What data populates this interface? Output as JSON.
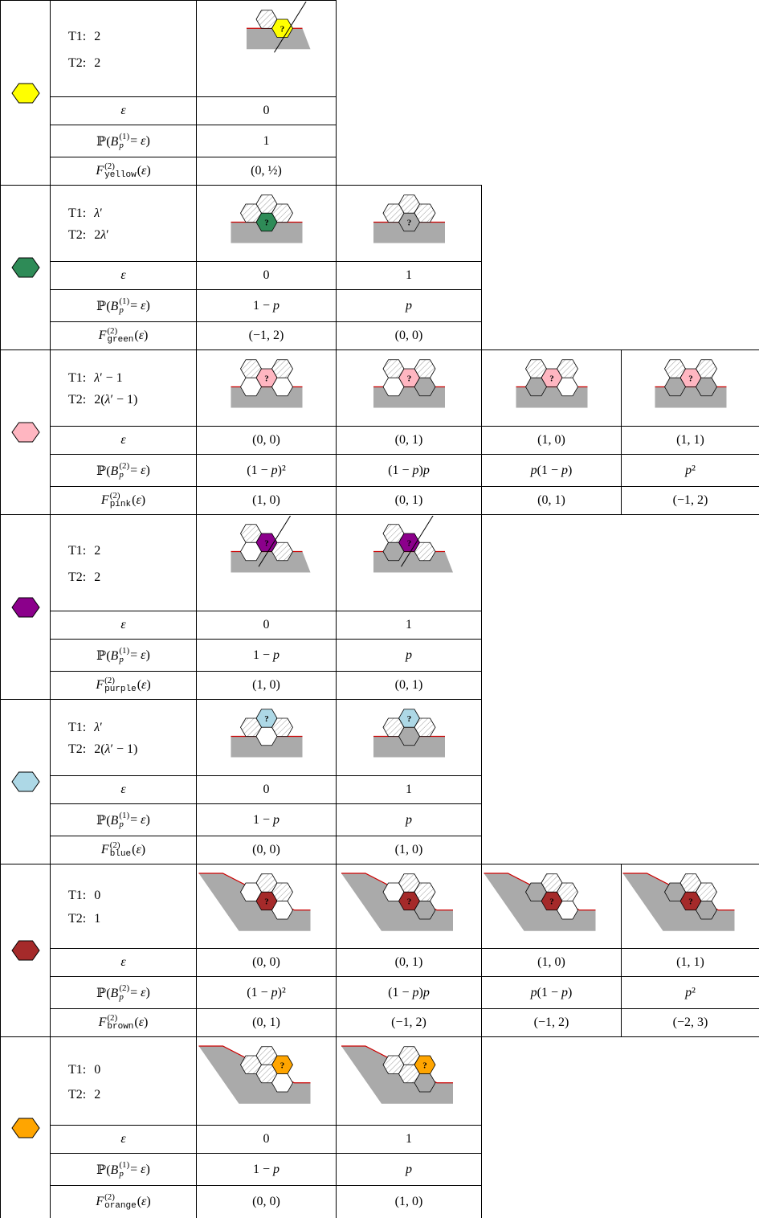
{
  "question_mark": "?",
  "blocks": [
    {
      "color": "#ffff00",
      "t1": {
        "label": "T1:",
        "value": "2"
      },
      "t2": {
        "label": "T2:",
        "value": "2"
      },
      "epsilon_label": "ε",
      "prob_label": {
        "main": "ℙ(B",
        "sub": "p",
        "sup": "(1)",
        "tail": " = ε)"
      },
      "f_label": {
        "main": "F",
        "sup": "(2)",
        "sub": "yellow",
        "tail": "(ε)"
      },
      "columns": [
        {
          "epsilon": "0",
          "prob": "1",
          "f": "(0, ½)"
        }
      ]
    },
    {
      "color": "#2e8b57",
      "t1": {
        "label": "T1:",
        "value": "λ′"
      },
      "t2": {
        "label": "T2:",
        "value": "2λ′"
      },
      "epsilon_label": "ε",
      "prob_label": {
        "main": "ℙ(B",
        "sub": "p",
        "sup": "(1)",
        "tail": " = ε)"
      },
      "f_label": {
        "main": "F",
        "sup": "(2)",
        "sub": "green",
        "tail": "(ε)"
      },
      "columns": [
        {
          "epsilon": "0",
          "prob": "1 − p",
          "f": "(−1, 2)"
        },
        {
          "epsilon": "1",
          "prob": "p",
          "f": "(0, 0)"
        }
      ]
    },
    {
      "color": "#ffb6c1",
      "t1": {
        "label": "T1:",
        "value": "λ′ − 1"
      },
      "t2": {
        "label": "T2:",
        "value": "2(λ′ − 1)"
      },
      "epsilon_label": "ε",
      "prob_label": {
        "main": "ℙ(B",
        "sub": "p",
        "sup": "(2)",
        "tail": " = ε)"
      },
      "f_label": {
        "main": "F",
        "sup": "(2)",
        "sub": "pink",
        "tail": "(ε)"
      },
      "columns": [
        {
          "epsilon": "(0, 0)",
          "prob": "(1 − p)²",
          "f": "(1, 0)"
        },
        {
          "epsilon": "(0, 1)",
          "prob": "(1 − p)p",
          "f": "(0, 1)"
        },
        {
          "epsilon": "(1, 0)",
          "prob": "p(1 − p)",
          "f": "(0, 1)"
        },
        {
          "epsilon": "(1, 1)",
          "prob": "p²",
          "f": "(−1, 2)"
        }
      ]
    },
    {
      "color": "#8b008b",
      "t1": {
        "label": "T1:",
        "value": "2"
      },
      "t2": {
        "label": "T2:",
        "value": "2"
      },
      "epsilon_label": "ε",
      "prob_label": {
        "main": "ℙ(B",
        "sub": "p",
        "sup": "(1)",
        "tail": " = ε)"
      },
      "f_label": {
        "main": "F",
        "sup": "(2)",
        "sub": "purple",
        "tail": "(ε)"
      },
      "columns": [
        {
          "epsilon": "0",
          "prob": "1 − p",
          "f": "(1, 0)"
        },
        {
          "epsilon": "1",
          "prob": "p",
          "f": "(0, 1)"
        }
      ]
    },
    {
      "color": "#add8e6",
      "t1": {
        "label": "T1:",
        "value": "λ′"
      },
      "t2": {
        "label": "T2:",
        "value": "2(λ′ − 1)"
      },
      "epsilon_label": "ε",
      "prob_label": {
        "main": "ℙ(B",
        "sub": "p",
        "sup": "(1)",
        "tail": " = ε)"
      },
      "f_label": {
        "main": "F",
        "sup": "(2)",
        "sub": "blue",
        "tail": "(ε)"
      },
      "columns": [
        {
          "epsilon": "0",
          "prob": "1 − p",
          "f": "(0, 0)"
        },
        {
          "epsilon": "1",
          "prob": "p",
          "f": "(1, 0)"
        }
      ]
    },
    {
      "color": "#a52a2a",
      "t1": {
        "label": "T1:",
        "value": "0"
      },
      "t2": {
        "label": "T2:",
        "value": "1"
      },
      "epsilon_label": "ε",
      "prob_label": {
        "main": "ℙ(B",
        "sub": "p",
        "sup": "(2)",
        "tail": " = ε)"
      },
      "f_label": {
        "main": "F",
        "sup": "(2)",
        "sub": "brown",
        "tail": "(ε)"
      },
      "columns": [
        {
          "epsilon": "(0, 0)",
          "prob": "(1 − p)²",
          "f": "(0, 1)"
        },
        {
          "epsilon": "(0, 1)",
          "prob": "(1 − p)p",
          "f": "(−1, 2)"
        },
        {
          "epsilon": "(1, 0)",
          "prob": "p(1 − p)",
          "f": "(−1, 2)"
        },
        {
          "epsilon": "(1, 1)",
          "prob": "p²",
          "f": "(−2, 3)"
        }
      ]
    },
    {
      "color": "#ffa500",
      "t1": {
        "label": "T1:",
        "value": "0"
      },
      "t2": {
        "label": "T2:",
        "value": "2"
      },
      "epsilon_label": "ε",
      "prob_label": {
        "main": "ℙ(B",
        "sub": "p",
        "sup": "(1)",
        "tail": " = ε)"
      },
      "f_label": {
        "main": "F",
        "sup": "(2)",
        "sub": "orange",
        "tail": "(ε)"
      },
      "columns": [
        {
          "epsilon": "0",
          "prob": "1 − p",
          "f": "(0, 0)"
        },
        {
          "epsilon": "1",
          "prob": "p",
          "f": "(1, 0)"
        }
      ]
    }
  ]
}
